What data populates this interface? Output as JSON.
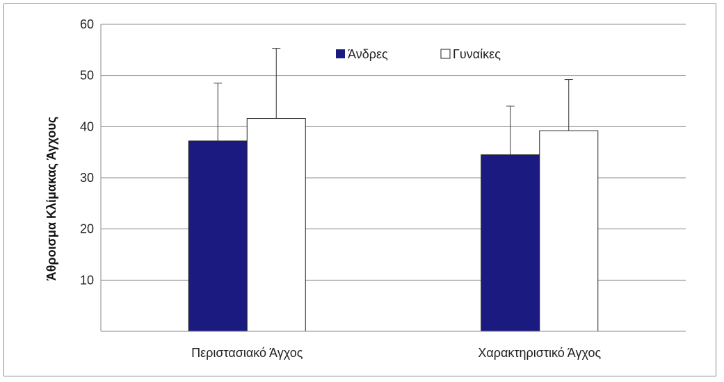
{
  "chart_data": {
    "type": "bar",
    "title": "",
    "xlabel": "",
    "ylabel": "Άθροισμα Κλίμακας Άγχους",
    "ylim": [
      0,
      60
    ],
    "yticks": [
      "10",
      "20",
      "30",
      "40",
      "50",
      "60"
    ],
    "categories": [
      "Περιστασιακό Άγχος",
      "Χαρακτηριστικό Άγχος"
    ],
    "series": [
      {
        "name": "Άνδρες",
        "color": "#1a1a80",
        "values": [
          37.2,
          34.5
        ],
        "errors": [
          11.3,
          9.5
        ]
      },
      {
        "name": "Γυναίκες",
        "color": "#ffffff",
        "values": [
          41.6,
          39.2
        ],
        "errors": [
          13.7,
          10.0
        ]
      }
    ],
    "grid": true,
    "legend": "top-center"
  }
}
